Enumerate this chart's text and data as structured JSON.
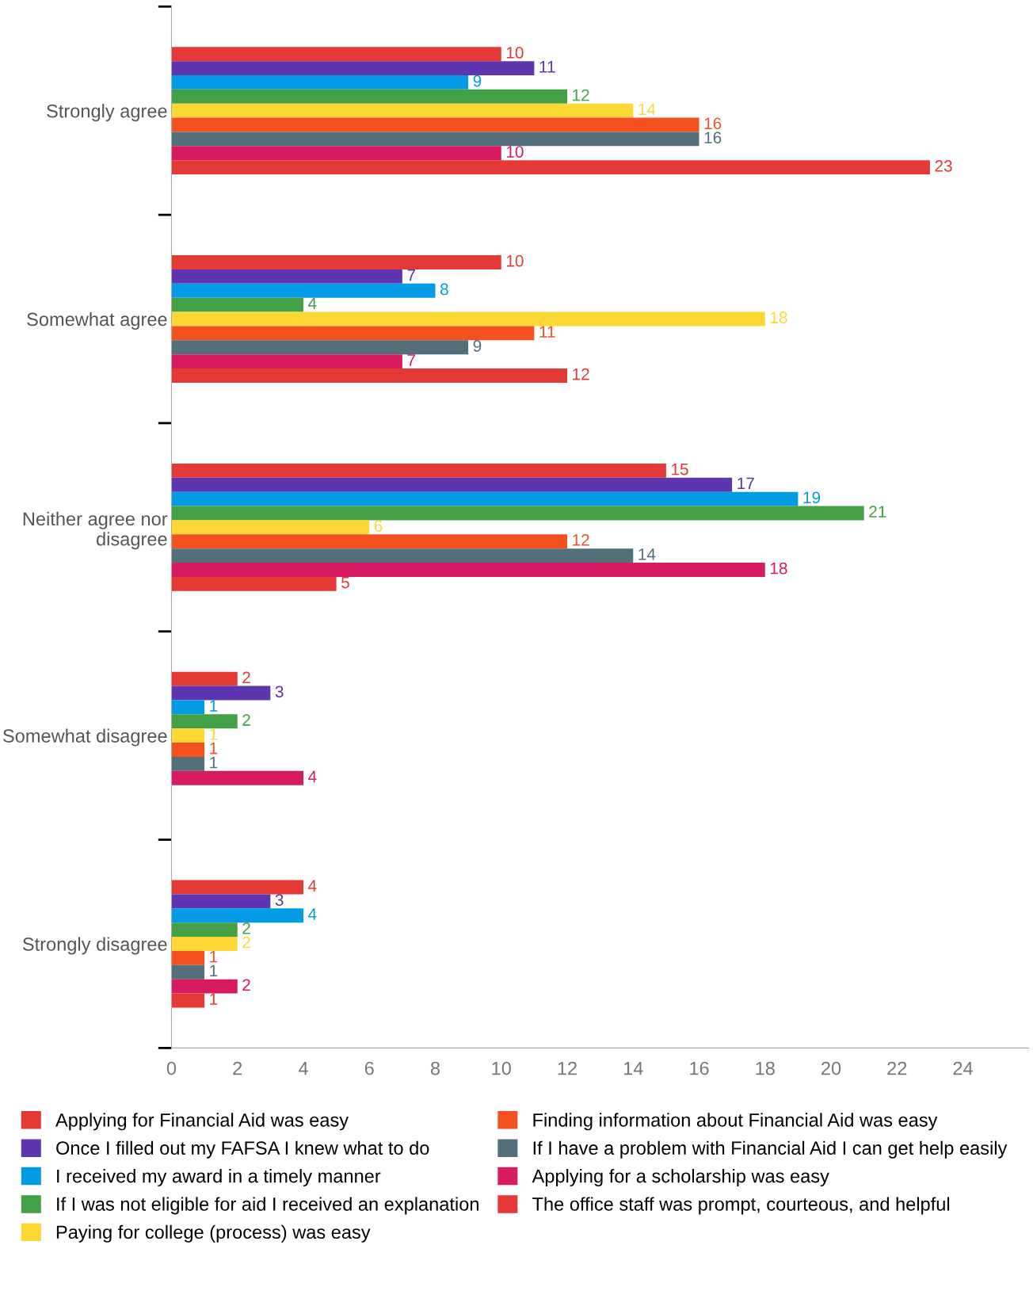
{
  "chart_data": {
    "type": "bar",
    "orientation": "horizontal",
    "categories": [
      "Strongly agree",
      "Somewhat agree",
      "Neither agree nor disagree",
      "Somewhat disagree",
      "Strongly disagree"
    ],
    "xlim": [
      0,
      26
    ],
    "xticks": [
      0,
      2,
      4,
      6,
      8,
      10,
      12,
      14,
      16,
      18,
      20,
      22,
      24
    ],
    "data_labels": true,
    "legend": "bottom",
    "grid": false,
    "series": [
      {
        "name": "Applying for Financial Aid was easy",
        "color": "#e53935",
        "values": [
          10,
          10,
          15,
          2,
          4
        ]
      },
      {
        "name": "Once I filled out my FAFSA I knew what to do",
        "color": "#5e35b1",
        "values": [
          11,
          7,
          17,
          3,
          3
        ]
      },
      {
        "name": "I received my award in a timely manner",
        "color": "#039be5",
        "values": [
          9,
          8,
          19,
          1,
          4
        ]
      },
      {
        "name": "If I was not eligible for aid I received an explanation",
        "color": "#43a047",
        "values": [
          12,
          4,
          21,
          2,
          2
        ]
      },
      {
        "name": "Paying for college (process) was easy",
        "color": "#fdd835",
        "values": [
          14,
          18,
          6,
          1,
          2
        ]
      },
      {
        "name": "Finding information about Financial Aid was easy",
        "color": "#f4511e",
        "values": [
          16,
          11,
          12,
          1,
          1
        ]
      },
      {
        "name": "If I have a problem with Financial Aid I can get help easily",
        "color": "#546e7a",
        "values": [
          16,
          9,
          14,
          1,
          1
        ]
      },
      {
        "name": "Applying for a scholarship was easy",
        "color": "#d81b60",
        "values": [
          10,
          7,
          18,
          4,
          2
        ]
      },
      {
        "name": "The office staff was prompt, courteous, and helpful",
        "color": "#e53935",
        "values": [
          23,
          12,
          5,
          null,
          1
        ]
      }
    ]
  }
}
